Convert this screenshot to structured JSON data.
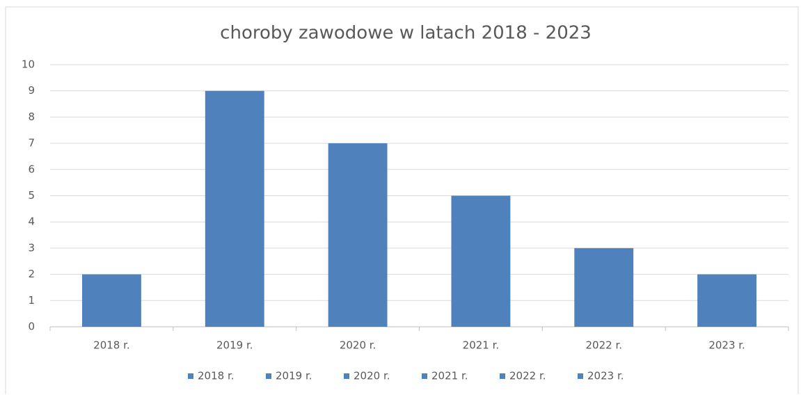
{
  "chart_data": {
    "type": "bar",
    "title": "choroby zawodowe w latach 2018 - 2023",
    "categories": [
      "2018 r.",
      "2019 r.",
      "2020 r.",
      "2021 r.",
      "2022 r.",
      "2023 r."
    ],
    "values": [
      2,
      9,
      7,
      5,
      3,
      2
    ],
    "color": "#4f81bd",
    "ylim": [
      0,
      10
    ],
    "yticks": [
      0,
      1,
      2,
      3,
      4,
      5,
      6,
      7,
      8,
      9,
      10
    ],
    "grid": true,
    "legend": "bottom"
  }
}
